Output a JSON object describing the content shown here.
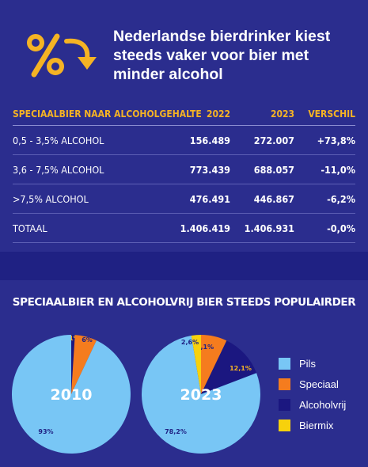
{
  "headline": "Nederlandse bierdrinker kiest steeds vaker voor bier met minder alcohol",
  "icon": "percent-down-icon",
  "colors": {
    "background": "#2b2d8e",
    "band": "#1f2183",
    "accent": "#f5b324",
    "pils": "#78c6f5",
    "speciaal": "#f57c1e",
    "alcoholvrij": "#1b1780",
    "biermix": "#f7d10c"
  },
  "table": {
    "headers": [
      "SPECIAALBIER NAAR ALCOHOLGEHALTE",
      "2022",
      "2023",
      "VERSCHIL"
    ],
    "rows": [
      [
        "0,5 - 3,5% ALCOHOL",
        "156.489",
        "272.007",
        "+73,8%"
      ],
      [
        "3,6 - 7,5% ALCOHOL",
        "773.439",
        "688.057",
        "-11,0%"
      ],
      [
        ">7,5% ALCOHOL",
        "476.491",
        "446.867",
        "-6,2%"
      ],
      [
        "TOTAAL",
        "1.406.419",
        "1.406.931",
        "-0,0%"
      ]
    ]
  },
  "section_title": "SPECIAALBIER EN ALCOHOLVRIJ BIER STEEDS POPULAIRDER",
  "chart_data": [
    {
      "type": "pie",
      "title": "2010",
      "categories": [
        "Pils",
        "Speciaal",
        "Alcoholvrij",
        "Biermix"
      ],
      "values": [
        93,
        6,
        1,
        0
      ],
      "labels": [
        "93%",
        "6%",
        "1%",
        ""
      ]
    },
    {
      "type": "pie",
      "title": "2023",
      "categories": [
        "Pils",
        "Speciaal",
        "Alcoholvrij",
        "Biermix"
      ],
      "values": [
        78.2,
        7.1,
        12.1,
        2.6
      ],
      "labels": [
        "78,2%",
        "7,1%",
        "12,1%",
        "2,6%"
      ]
    }
  ],
  "legend": [
    {
      "label": "Pils",
      "color": "#78c6f5"
    },
    {
      "label": "Speciaal",
      "color": "#f57c1e"
    },
    {
      "label": "Alcoholvrij",
      "color": "#1b1780"
    },
    {
      "label": "Biermix",
      "color": "#f7d10c"
    }
  ]
}
